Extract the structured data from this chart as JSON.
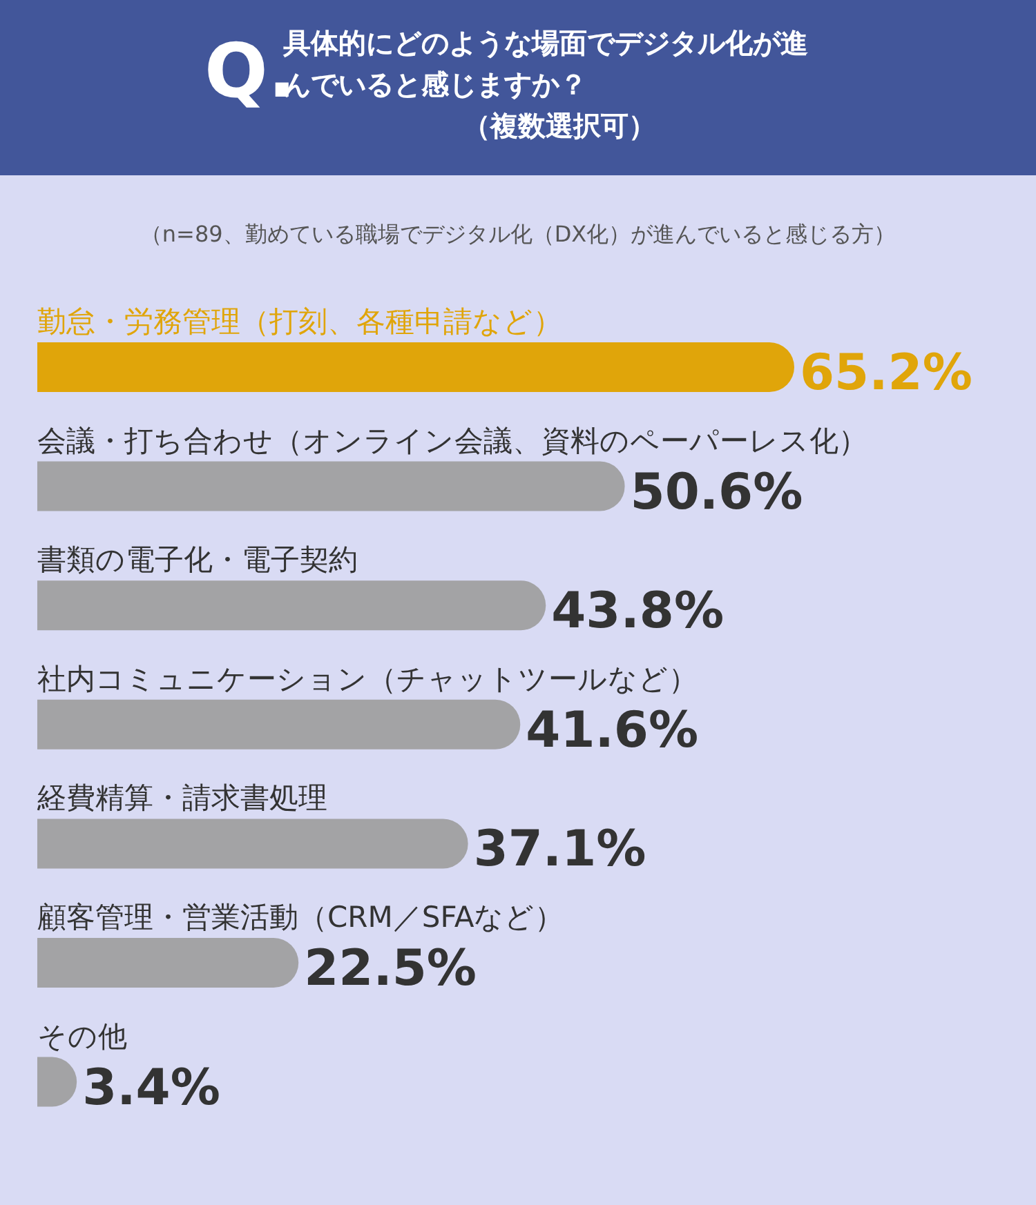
{
  "chart_data": {
    "type": "bar",
    "orientation": "horizontal",
    "title": "具体的にどのような場面でデジタル化が進んでいると感じますか？",
    "subtitle": "（複数選択可）",
    "annotations": [
      "Q.",
      "（n=89、勤めている職場でデジタル化（DX化）が進んでいると感じる方）"
    ],
    "categories": [
      "勤怠・労務管理（打刻、各種申請など）",
      "会議・打ち合わせ（オンライン会議、資料のペーパーレス化）",
      "書類の電子化・電子契約",
      "社内コミュニケーション（チャットツールなど）",
      "経費精算・請求書処理",
      "顧客管理・営業活動（CRM／SFAなど）",
      "その他"
    ],
    "values": [
      65.2,
      50.6,
      43.8,
      41.6,
      37.1,
      22.5,
      3.4
    ],
    "value_labels": [
      "65.2%",
      "50.6%",
      "43.8%",
      "41.6%",
      "37.1%",
      "22.5%",
      "3.4%"
    ],
    "colors": [
      "#e0a50a",
      "#a3a3a5",
      "#a3a3a5",
      "#a3a3a5",
      "#a3a3a5",
      "#a3a3a5",
      "#a3a3a5"
    ]
  }
}
